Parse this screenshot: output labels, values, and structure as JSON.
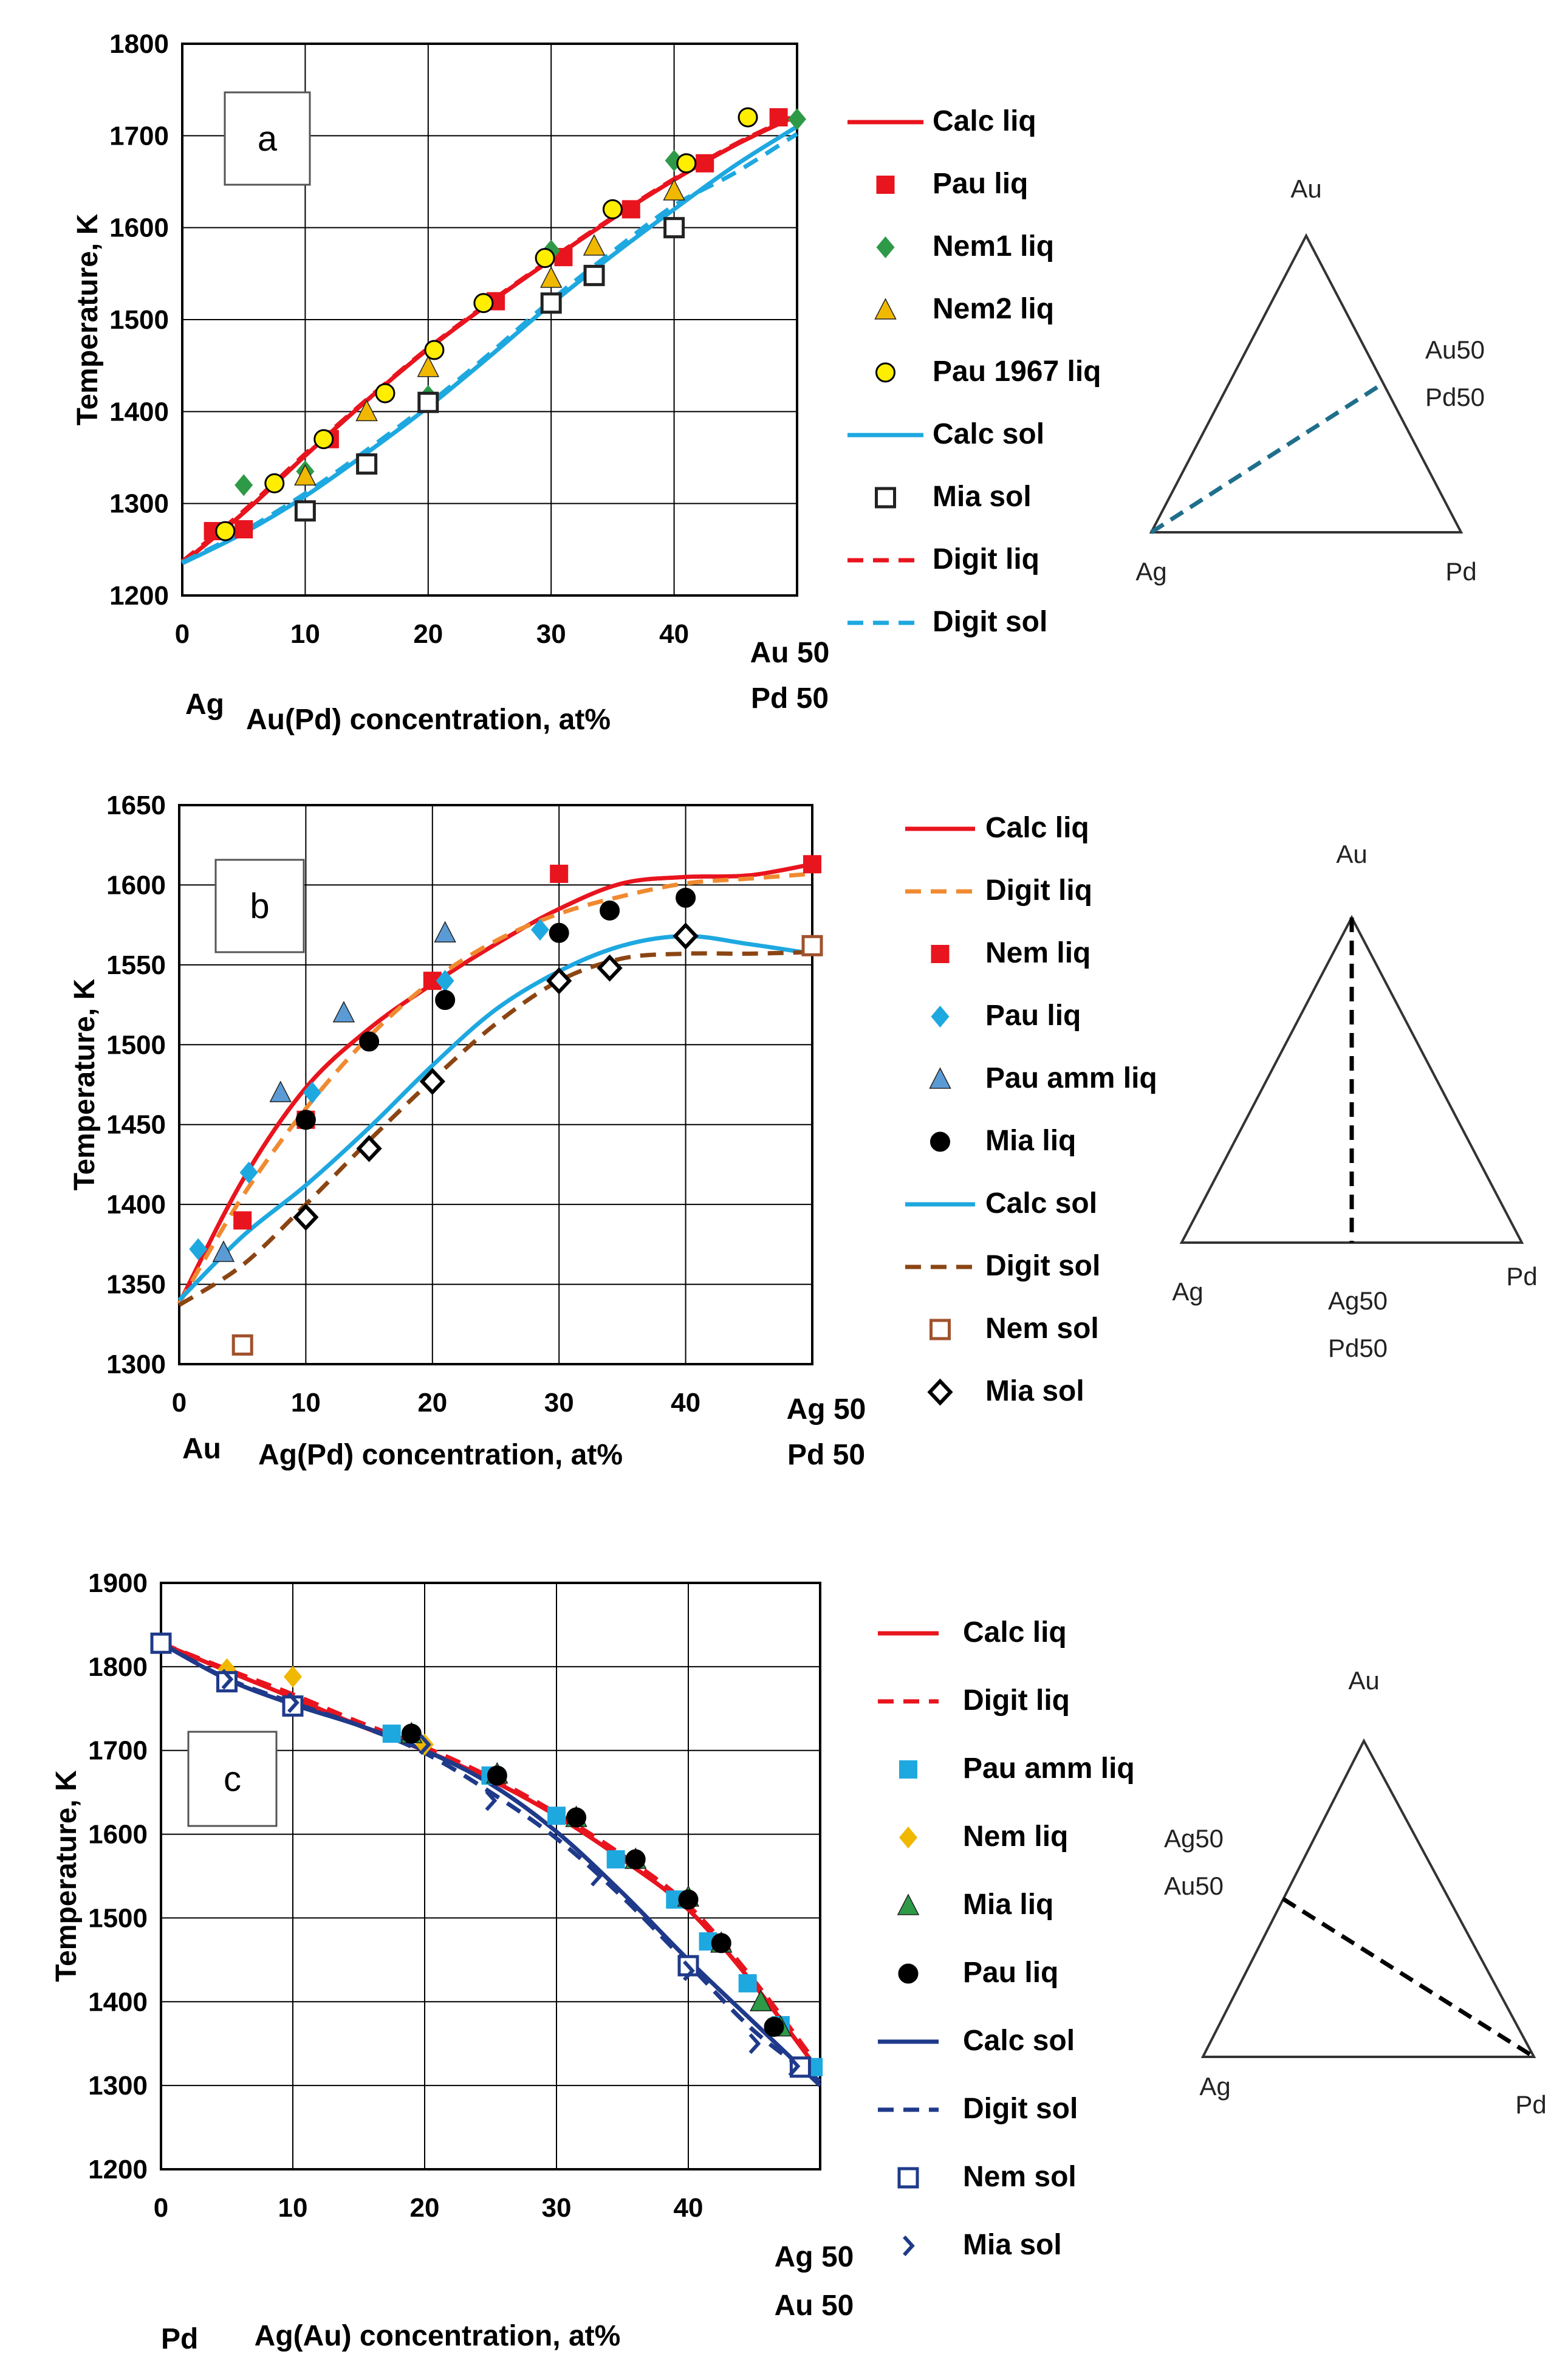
{
  "chart_data": [
    {
      "type": "line",
      "panel_label": "a",
      "ylabel": "Temperature, K",
      "xlabel": "Au(Pd) concentration, at%",
      "x_start_label": "Ag",
      "x_end_label": [
        "Au 50",
        "Pd 50"
      ],
      "xlim": [
        0,
        50
      ],
      "ylim": [
        1200,
        1800
      ],
      "xticks": [
        0,
        10,
        20,
        30,
        40
      ],
      "yticks": [
        1200,
        1300,
        1400,
        1500,
        1600,
        1700,
        1800
      ],
      "grid": true,
      "legend_position": "right",
      "series": [
        {
          "name": "Calc liq",
          "kind": "line",
          "color": "#e8141e",
          "dash": "solid",
          "x": [
            0,
            5,
            10,
            15,
            20,
            25,
            30,
            35,
            40,
            45,
            50
          ],
          "y": [
            1235,
            1290,
            1352,
            1412,
            1468,
            1518,
            1565,
            1610,
            1652,
            1690,
            1722
          ]
        },
        {
          "name": "Pau liq",
          "kind": "marker",
          "marker": "square",
          "color": "#e8141e",
          "x": [
            2.5,
            5,
            12,
            25.5,
            31,
            36.5,
            42.5,
            48.5
          ],
          "y": [
            1270,
            1272,
            1370,
            1520,
            1568,
            1620,
            1670,
            1720
          ]
        },
        {
          "name": "Nem1 liq",
          "kind": "marker",
          "marker": "diamond",
          "color": "#2e9a47",
          "x": [
            5,
            10,
            20,
            30,
            40,
            50
          ],
          "y": [
            1320,
            1335,
            1417,
            1575,
            1673,
            1718
          ]
        },
        {
          "name": "Nem2 liq",
          "kind": "marker",
          "marker": "triangle",
          "color": "#f0b800",
          "x": [
            10,
            15,
            20,
            30,
            33.5,
            40
          ],
          "y": [
            1330,
            1400,
            1448,
            1545,
            1580,
            1640
          ]
        },
        {
          "name": "Pau 1967 liq",
          "kind": "marker",
          "marker": "circle",
          "color": "#ffee00",
          "x": [
            3.5,
            7.5,
            11.5,
            16.5,
            20.5,
            24.5,
            29.5,
            35,
            41,
            46
          ],
          "y": [
            1270,
            1322,
            1370,
            1420,
            1467,
            1518,
            1567,
            1620,
            1670,
            1720
          ]
        },
        {
          "name": "Calc sol",
          "kind": "line",
          "color": "#1ea8e0",
          "dash": "solid",
          "x": [
            0,
            5,
            10,
            15,
            20,
            25,
            30,
            35,
            40,
            45,
            50
          ],
          "y": [
            1235,
            1268,
            1308,
            1355,
            1405,
            1460,
            1517,
            1570,
            1620,
            1668,
            1710
          ]
        },
        {
          "name": "Mia sol",
          "kind": "marker",
          "marker": "open-square",
          "color": "#222222",
          "x": [
            10,
            15,
            20,
            30,
            33.5,
            40
          ],
          "y": [
            1292,
            1343,
            1410,
            1518,
            1548,
            1600
          ]
        },
        {
          "name": "Digit liq",
          "kind": "line",
          "color": "#e8141e",
          "dash": "dashed",
          "x": [
            0,
            5,
            10,
            15,
            20,
            25,
            30,
            35,
            40,
            45,
            50
          ],
          "y": [
            1237,
            1292,
            1354,
            1413,
            1469,
            1519,
            1566,
            1611,
            1653,
            1691,
            1723
          ]
        },
        {
          "name": "Digit sol",
          "kind": "line",
          "color": "#1ea8e0",
          "dash": "dashed",
          "x": [
            0,
            5,
            10,
            15,
            20,
            25,
            30,
            35,
            40,
            45,
            50
          ],
          "y": [
            1236,
            1270,
            1311,
            1358,
            1408,
            1463,
            1521,
            1574,
            1624,
            1660,
            1702
          ]
        }
      ],
      "triangle": {
        "top": "Au",
        "left": "Ag",
        "right": "Pd",
        "mid_label": [
          "Au50",
          "Pd50"
        ],
        "line_color": "#1f6e8c"
      }
    },
    {
      "type": "line",
      "panel_label": "b",
      "ylabel": "Temperature, K",
      "xlabel": "Ag(Pd) concentration, at%",
      "x_start_label": "Au",
      "x_end_label": [
        "Ag 50",
        "Pd 50"
      ],
      "xlim": [
        0,
        50
      ],
      "ylim": [
        1300,
        1650
      ],
      "xticks": [
        0,
        10,
        20,
        30,
        40
      ],
      "yticks": [
        1300,
        1350,
        1400,
        1450,
        1500,
        1550,
        1600,
        1650
      ],
      "grid": true,
      "legend_position": "right",
      "series": [
        {
          "name": "Calc liq",
          "kind": "line",
          "color": "#e8141e",
          "dash": "solid",
          "x": [
            0,
            5,
            10,
            15,
            20,
            25,
            30,
            35,
            40,
            45,
            50
          ],
          "y": [
            1338,
            1415,
            1473,
            1510,
            1538,
            1563,
            1585,
            1601,
            1605,
            1606,
            1613
          ]
        },
        {
          "name": "Digit liq",
          "kind": "line",
          "color": "#f08a30",
          "dash": "dashed",
          "x": [
            0,
            5,
            10,
            15,
            20,
            25,
            30,
            35,
            40,
            45,
            50
          ],
          "y": [
            1338,
            1405,
            1460,
            1505,
            1540,
            1565,
            1582,
            1593,
            1601,
            1604,
            1607
          ]
        },
        {
          "name": "Nem liq",
          "kind": "marker",
          "marker": "square",
          "color": "#e8141e",
          "x": [
            5,
            10,
            20,
            30,
            50
          ],
          "y": [
            1390,
            1453,
            1540,
            1607,
            1613
          ]
        },
        {
          "name": "Pau liq",
          "kind": "marker",
          "marker": "diamond",
          "color": "#1ea8e0",
          "x": [
            1.5,
            5.5,
            10.5,
            21,
            28.5
          ],
          "y": [
            1372,
            1420,
            1470,
            1540,
            1572
          ]
        },
        {
          "name": "Pau amm liq",
          "kind": "marker",
          "marker": "triangle",
          "color": "#5b9bd5",
          "x": [
            3.5,
            8,
            13,
            21
          ],
          "y": [
            1370,
            1470,
            1520,
            1570
          ]
        },
        {
          "name": "Mia liq",
          "kind": "marker",
          "marker": "circle",
          "color": "#000000",
          "x": [
            10,
            15,
            21,
            30,
            34,
            40
          ],
          "y": [
            1453,
            1502,
            1528,
            1570,
            1584,
            1592
          ]
        },
        {
          "name": "Calc sol",
          "kind": "line",
          "color": "#1ea8e0",
          "dash": "solid",
          "x": [
            0,
            5,
            10,
            15,
            20,
            25,
            30,
            35,
            40,
            45,
            50
          ],
          "y": [
            1340,
            1380,
            1412,
            1448,
            1487,
            1522,
            1546,
            1562,
            1568,
            1563,
            1557
          ]
        },
        {
          "name": "Digit sol",
          "kind": "line",
          "color": "#8b4513",
          "dash": "dashed",
          "x": [
            0,
            5,
            10,
            15,
            20,
            25,
            30,
            35,
            40,
            45,
            50
          ],
          "y": [
            1337,
            1362,
            1400,
            1440,
            1478,
            1513,
            1540,
            1554,
            1557,
            1557,
            1558
          ]
        },
        {
          "name": "Nem sol",
          "kind": "marker",
          "marker": "open-square",
          "color": "#a0522d",
          "x": [
            5,
            50
          ],
          "y": [
            1312,
            1562
          ]
        },
        {
          "name": "Mia sol",
          "kind": "marker",
          "marker": "open-diamond",
          "color": "#000000",
          "x": [
            10,
            15,
            20,
            30,
            34,
            40
          ],
          "y": [
            1392,
            1435,
            1477,
            1540,
            1548,
            1568
          ]
        }
      ],
      "triangle": {
        "top": "Au",
        "left": "Ag",
        "right": "Pd",
        "mid_label": [
          "Ag50",
          "Pd50"
        ],
        "line_color": "#000000"
      }
    },
    {
      "type": "line",
      "panel_label": "c",
      "ylabel": "Temperature, K",
      "xlabel": "Ag(Au) concentration, at%",
      "x_start_label": "Pd",
      "x_end_label": [
        "Ag 50",
        "Au 50"
      ],
      "xlim": [
        0,
        50
      ],
      "ylim": [
        1200,
        1900
      ],
      "xticks": [
        0,
        10,
        20,
        30,
        40
      ],
      "yticks": [
        1200,
        1300,
        1400,
        1500,
        1600,
        1700,
        1800,
        1900
      ],
      "grid": true,
      "legend_position": "right",
      "series": [
        {
          "name": "Calc liq",
          "kind": "line",
          "color": "#e8141e",
          "dash": "solid",
          "x": [
            0,
            5,
            10,
            15,
            20,
            25,
            30,
            35,
            40,
            45,
            50
          ],
          "y": [
            1828,
            1795,
            1763,
            1730,
            1700,
            1665,
            1622,
            1570,
            1510,
            1420,
            1315
          ]
        },
        {
          "name": "Digit liq",
          "kind": "line",
          "color": "#e8141e",
          "dash": "dashed",
          "x": [
            0,
            5,
            10,
            15,
            20,
            25,
            30,
            35,
            40,
            45,
            50
          ],
          "y": [
            1828,
            1797,
            1767,
            1734,
            1704,
            1668,
            1625,
            1575,
            1515,
            1425,
            1320
          ]
        },
        {
          "name": "Pau amm liq",
          "kind": "marker",
          "marker": "square",
          "color": "#1ea8e0",
          "x": [
            17.5,
            25,
            30,
            34.5,
            39,
            41.5,
            44.5,
            47,
            49.5
          ],
          "y": [
            1720,
            1670,
            1622,
            1570,
            1522,
            1472,
            1422,
            1372,
            1322
          ]
        },
        {
          "name": "Nem liq",
          "kind": "marker",
          "marker": "diamond",
          "color": "#f0b800",
          "x": [
            5,
            10,
            20
          ],
          "y": [
            1797,
            1788,
            1707
          ]
        },
        {
          "name": "Mia liq",
          "kind": "marker",
          "marker": "triangle",
          "color": "#2e9a47",
          "x": [
            19,
            25.5,
            31.5,
            36,
            40,
            42.5,
            45.5,
            47
          ],
          "y": [
            1720,
            1672,
            1620,
            1570,
            1525,
            1470,
            1400,
            1370
          ]
        },
        {
          "name": "Pau liq",
          "kind": "marker",
          "marker": "circle",
          "color": "#000000",
          "x": [
            19,
            25.5,
            31.5,
            36,
            40,
            42.5,
            46.5
          ],
          "y": [
            1720,
            1670,
            1620,
            1570,
            1522,
            1470,
            1370
          ]
        },
        {
          "name": "Calc sol",
          "kind": "line",
          "color": "#1f3a8a",
          "dash": "solid",
          "x": [
            0,
            5,
            10,
            15,
            20,
            25,
            30,
            35,
            40,
            45,
            50
          ],
          "y": [
            1828,
            1785,
            1755,
            1730,
            1700,
            1660,
            1603,
            1530,
            1450,
            1375,
            1300
          ]
        },
        {
          "name": "Digit sol",
          "kind": "line",
          "color": "#1f3a8a",
          "dash": "dashed",
          "x": [
            0,
            5,
            10,
            15,
            20,
            25,
            30,
            35,
            40,
            45,
            50
          ],
          "y": [
            1828,
            1786,
            1757,
            1730,
            1697,
            1650,
            1595,
            1525,
            1445,
            1365,
            1305
          ]
        },
        {
          "name": "Nem sol",
          "kind": "marker",
          "marker": "open-square",
          "color": "#1f3a8a",
          "x": [
            0,
            5,
            10,
            40,
            48.5
          ],
          "y": [
            1828,
            1782,
            1753,
            1443,
            1322
          ]
        },
        {
          "name": "Mia sol",
          "kind": "marker",
          "marker": "chevron",
          "color": "#1f3a8a",
          "x": [
            5,
            10,
            20,
            25,
            33,
            40,
            45,
            48
          ],
          "y": [
            1785,
            1757,
            1707,
            1640,
            1550,
            1437,
            1350,
            1323
          ]
        }
      ],
      "triangle": {
        "top": "Au",
        "left": "Ag",
        "right": "Pd",
        "mid_label": [
          "Ag50",
          "Au50"
        ],
        "line_color": "#000000"
      }
    }
  ]
}
